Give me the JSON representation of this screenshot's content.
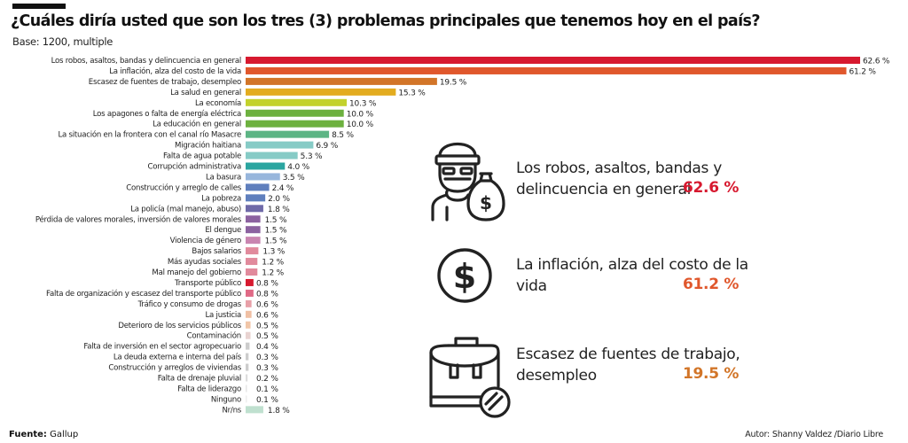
{
  "header": {
    "title": "¿Cuáles diría usted que son los tres (3) problemas principales que tenemos hoy en el país?",
    "subtitle": "Base: 1200, multiple"
  },
  "footer": {
    "source_label": "Fuente:",
    "source_value": "Gallup",
    "author": "Autor: Shanny Valdez /Diario Libre"
  },
  "highlights": [
    {
      "icon": "thief-with-money-bag-icon",
      "text": "Los robos, asaltos, bandas y delincuencia en general",
      "value": "62.6 %",
      "color": "#d7192f"
    },
    {
      "icon": "dollar-circle-icon",
      "text": "La inflación, alza del costo de la vida",
      "value": "61.2 %",
      "color": "#e0572c"
    },
    {
      "icon": "briefcase-blocked-icon",
      "text": "Escasez de fuentes de trabajo, desempleo",
      "value": "19.5 %",
      "color": "#d27528"
    }
  ],
  "chart_data": {
    "type": "bar",
    "orientation": "horizontal",
    "title": "¿Cuáles diría usted que son los tres (3) problemas principales que tenemos hoy en el país?",
    "subtitle": "Base: 1200, multiple",
    "xlabel": "",
    "ylabel": "",
    "unit": "%",
    "xlim": [
      0,
      62.6
    ],
    "grid": false,
    "categories": [
      "Los robos, asaltos, bandas y delincuencia en general",
      "La inflación, alza del costo de la vida",
      "Escasez de fuentes de trabajo, desempleo",
      "La salud en general",
      "La economía",
      "Los apagones o falta de energía eléctrica",
      "La educación en general",
      "La situación en la frontera con el canal río Masacre",
      "Migración haitiana",
      "Falta de agua potable",
      "Corrupción administrativa",
      "La basura",
      "Construcción y arreglo de calles",
      "La pobreza",
      "La policía (mal manejo, abuso)",
      "Pérdida de valores morales, inversión de valores morales",
      "El dengue",
      "Violencia de género",
      "Bajos salarios",
      "Más ayudas sociales",
      "Mal manejo del gobierno",
      "Transporte público",
      "Falta de organización y escasez del transporte público",
      "Tráfico y consumo de drogas",
      "La justicia",
      "Deterioro de los servicios públicos",
      "Contaminación",
      "Falta de inversión en el sector agropecuario",
      "La deuda externa e interna del país",
      "Construcción y arreglos de viviendas",
      "Falta de drenaje pluvial",
      "Falta de liderazgo",
      "Ninguno",
      "Nr/ns"
    ],
    "values": [
      62.6,
      61.2,
      19.5,
      15.3,
      10.3,
      10.0,
      10.0,
      8.5,
      6.9,
      5.3,
      4.0,
      3.5,
      2.4,
      2.0,
      1.8,
      1.5,
      1.5,
      1.5,
      1.3,
      1.2,
      1.2,
      0.8,
      0.8,
      0.6,
      0.6,
      0.5,
      0.5,
      0.4,
      0.3,
      0.3,
      0.2,
      0.1,
      0.1,
      1.8
    ],
    "value_labels": [
      "62.6 %",
      "61.2 %",
      "19.5 %",
      "15.3 %",
      "10.3 %",
      "10.0 %",
      "10.0 %",
      "8.5 %",
      "6.9 %",
      "5.3 %",
      "4.0 %",
      "3.5 %",
      "2.4 %",
      "2.0 %",
      "1.8 %",
      "1.5 %",
      "1.5 %",
      "1.5 %",
      "1.3 %",
      "1.2 %",
      "1.2 %",
      "0.8 %",
      "0.8 %",
      "0.6 %",
      "0.6 %",
      "0.5 %",
      "0.5 %",
      "0.4 %",
      "0.3 %",
      "0.3 %",
      "0.2 %",
      "0.1 %",
      "0.1 %",
      "1.8 %"
    ],
    "colors": [
      "#d7192f",
      "#e0572c",
      "#d27528",
      "#e3ac20",
      "#c3d22d",
      "#6db13f",
      "#6db13f",
      "#5db585",
      "#86cbc6",
      "#86cbc6",
      "#2ba5a0",
      "#97b6dc",
      "#5f7fbd",
      "#5f7fbd",
      "#6f6aa8",
      "#8c62a0",
      "#8c62a0",
      "#c985b0",
      "#e18a9c",
      "#e18a9c",
      "#e18a9c",
      "#d7192f",
      "#e06a86",
      "#e8a0a8",
      "#f0c0a4",
      "#f1c6a8",
      "#e8d3d1",
      "#cccccc",
      "#cccccc",
      "#cccccc",
      "#dddddd",
      "#e6e6e6",
      "#eeeeee",
      "#bfe0cf"
    ],
    "legend": "none"
  }
}
